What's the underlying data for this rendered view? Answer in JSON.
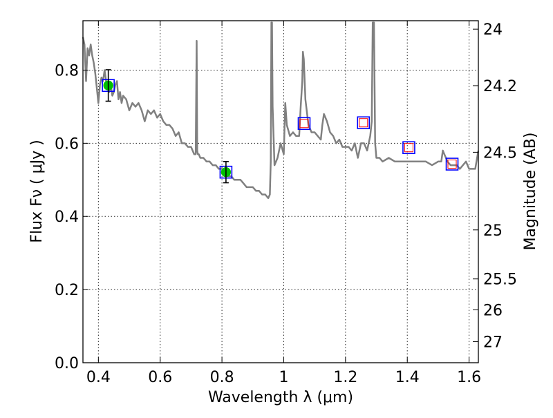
{
  "chart_data": {
    "type": "line",
    "xlabel": "Wavelength  λ (μm)",
    "ylabel": "Flux  Fν  ( μJy )",
    "y2label": "Magnitude (AB)",
    "xlim": [
      0.35,
      1.63
    ],
    "ylim": [
      0.0,
      0.935
    ],
    "x_ticks": [
      0.4,
      0.6,
      0.8,
      1.0,
      1.2,
      1.4,
      1.6
    ],
    "x_tick_labels": [
      "0.4",
      "0.6",
      "0.8",
      "1",
      "1.2",
      "1.4",
      "1.6"
    ],
    "y_ticks": [
      0.0,
      0.2,
      0.4,
      0.6,
      0.8
    ],
    "y_tick_labels": [
      "0.0",
      "0.2",
      "0.4",
      "0.6",
      "0.8"
    ],
    "y2_ticks": [
      {
        "flux": 0.912,
        "label": "24"
      },
      {
        "flux": 0.7575,
        "label": "24.2"
      },
      {
        "flux": 0.5754,
        "label": "24.5"
      },
      {
        "flux": 0.3631,
        "label": "25"
      },
      {
        "flux": 0.2291,
        "label": "25.5"
      },
      {
        "flux": 0.1445,
        "label": "26"
      },
      {
        "flux": 0.0575,
        "label": "27"
      }
    ],
    "grid": true,
    "colors": {
      "model": "#808080",
      "detection_fill": "#00c000",
      "detection_box": "#0000ff",
      "upper_box_outer": "#0000ff",
      "upper_box_inner": "#ff0000",
      "errorbar": "#000000"
    },
    "series": [
      {
        "style": "model-spectrum",
        "x": [
          0.35,
          0.355,
          0.36,
          0.365,
          0.37,
          0.375,
          0.38,
          0.385,
          0.39,
          0.395,
          0.4,
          0.405,
          0.41,
          0.415,
          0.42,
          0.425,
          0.43,
          0.435,
          0.44,
          0.445,
          0.45,
          0.455,
          0.46,
          0.465,
          0.47,
          0.475,
          0.48,
          0.49,
          0.5,
          0.51,
          0.52,
          0.53,
          0.54,
          0.55,
          0.56,
          0.57,
          0.58,
          0.59,
          0.6,
          0.61,
          0.62,
          0.63,
          0.64,
          0.65,
          0.66,
          0.67,
          0.68,
          0.69,
          0.7,
          0.71,
          0.715,
          0.718,
          0.72,
          0.722,
          0.725,
          0.73,
          0.74,
          0.75,
          0.76,
          0.77,
          0.78,
          0.79,
          0.8,
          0.81,
          0.82,
          0.83,
          0.84,
          0.85,
          0.86,
          0.87,
          0.88,
          0.89,
          0.9,
          0.91,
          0.92,
          0.93,
          0.94,
          0.95,
          0.955,
          0.958,
          0.96,
          0.962,
          0.964,
          0.97,
          0.98,
          0.99,
          1.0,
          1.005,
          1.01,
          1.02,
          1.03,
          1.04,
          1.05,
          1.055,
          1.06,
          1.062,
          1.065,
          1.07,
          1.08,
          1.09,
          1.1,
          1.11,
          1.12,
          1.125,
          1.13,
          1.14,
          1.15,
          1.16,
          1.17,
          1.18,
          1.19,
          1.2,
          1.21,
          1.22,
          1.23,
          1.24,
          1.25,
          1.26,
          1.27,
          1.28,
          1.285,
          1.288,
          1.292,
          1.296,
          1.3,
          1.31,
          1.32,
          1.34,
          1.36,
          1.38,
          1.4,
          1.42,
          1.44,
          1.46,
          1.48,
          1.5,
          1.51,
          1.515,
          1.52,
          1.525,
          1.53,
          1.54,
          1.55,
          1.56,
          1.57,
          1.58,
          1.59,
          1.6,
          1.61,
          1.62,
          1.63
        ],
        "y": [
          0.89,
          0.87,
          0.77,
          0.86,
          0.84,
          0.87,
          0.84,
          0.82,
          0.79,
          0.75,
          0.71,
          0.76,
          0.78,
          0.77,
          0.8,
          0.77,
          0.75,
          0.74,
          0.76,
          0.73,
          0.74,
          0.76,
          0.77,
          0.72,
          0.74,
          0.71,
          0.73,
          0.72,
          0.69,
          0.71,
          0.7,
          0.71,
          0.69,
          0.66,
          0.69,
          0.68,
          0.69,
          0.67,
          0.68,
          0.66,
          0.65,
          0.65,
          0.64,
          0.62,
          0.63,
          0.6,
          0.6,
          0.59,
          0.59,
          0.57,
          0.57,
          0.88,
          0.58,
          0.57,
          0.57,
          0.56,
          0.56,
          0.55,
          0.55,
          0.54,
          0.54,
          0.53,
          0.53,
          0.52,
          0.51,
          0.51,
          0.5,
          0.5,
          0.5,
          0.49,
          0.48,
          0.48,
          0.48,
          0.47,
          0.47,
          0.46,
          0.46,
          0.45,
          0.46,
          0.55,
          0.93,
          0.93,
          0.7,
          0.54,
          0.56,
          0.6,
          0.57,
          0.71,
          0.65,
          0.62,
          0.63,
          0.62,
          0.62,
          0.7,
          0.77,
          0.85,
          0.83,
          0.72,
          0.65,
          0.63,
          0.63,
          0.62,
          0.61,
          0.65,
          0.68,
          0.66,
          0.63,
          0.62,
          0.6,
          0.61,
          0.59,
          0.59,
          0.59,
          0.58,
          0.6,
          0.56,
          0.6,
          0.6,
          0.58,
          0.62,
          0.66,
          0.93,
          0.93,
          0.6,
          0.56,
          0.56,
          0.55,
          0.56,
          0.55,
          0.55,
          0.55,
          0.55,
          0.55,
          0.55,
          0.54,
          0.55,
          0.55,
          0.58,
          0.57,
          0.56,
          0.55,
          0.54,
          0.54,
          0.54,
          0.53,
          0.54,
          0.55,
          0.53,
          0.53,
          0.53,
          0.58
        ]
      },
      {
        "style": "detections",
        "x": [
          0.432,
          0.813
        ],
        "y": [
          0.758,
          0.521
        ],
        "err": [
          0.043,
          0.029
        ]
      },
      {
        "style": "model-bands",
        "x": [
          1.066,
          1.258,
          1.405,
          1.545
        ],
        "y": [
          0.654,
          0.656,
          0.588,
          0.543
        ]
      }
    ]
  }
}
